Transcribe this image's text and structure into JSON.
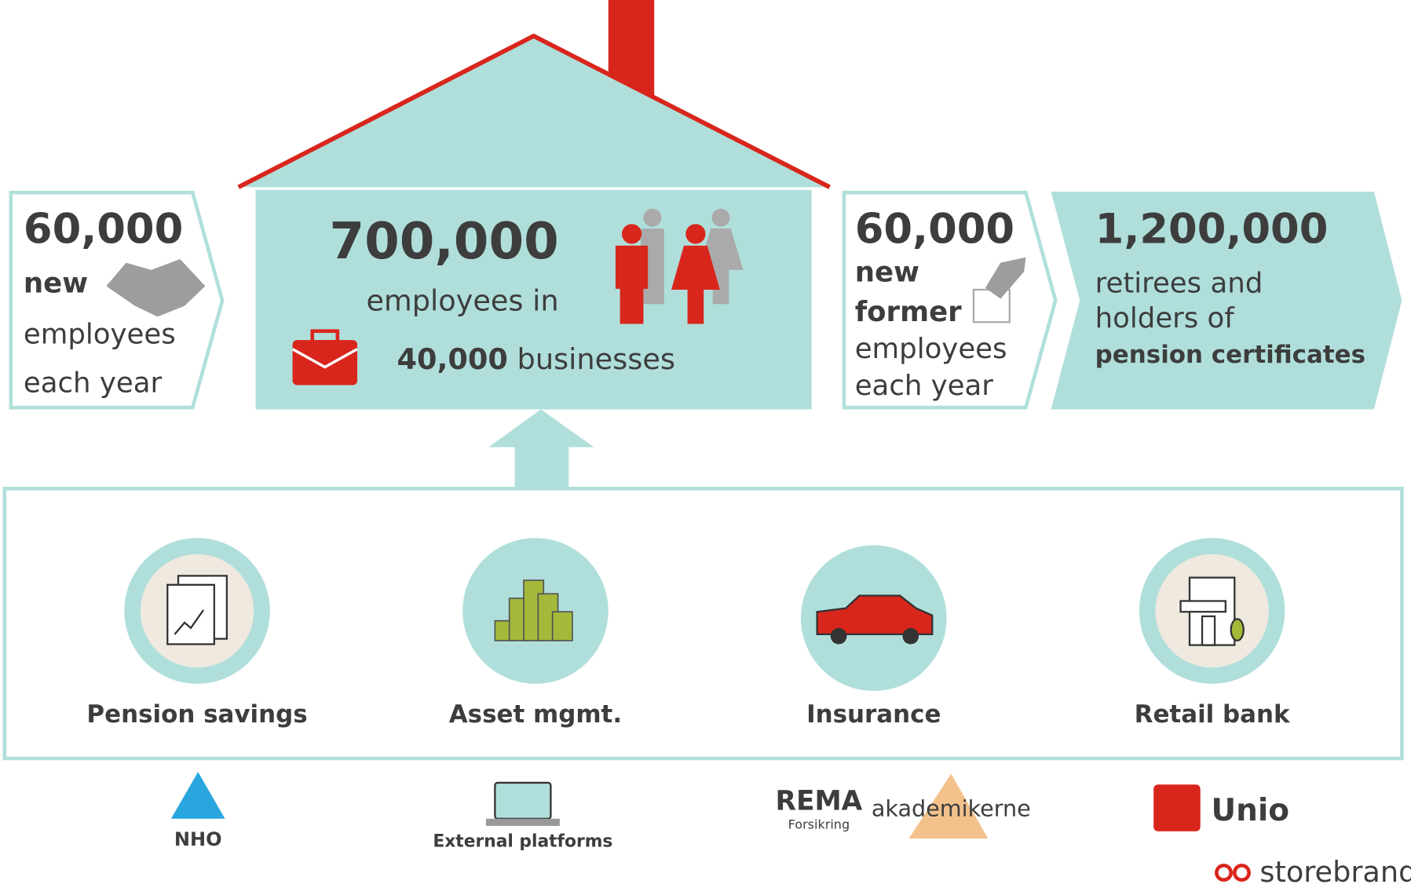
{
  "left": {
    "number": "60,000",
    "lines": [
      "new",
      "employees",
      "each year"
    ]
  },
  "house": {
    "number": "700,000",
    "line": "employees in",
    "businesses_number": "40,000",
    "businesses_label": "businesses"
  },
  "right": {
    "number": "60,000",
    "lines": [
      "new",
      "former",
      "employees",
      "each year"
    ]
  },
  "retirees": {
    "number": "1,200,000",
    "lines": [
      "retirees and",
      "holders of"
    ],
    "bold_line": "pension certificates"
  },
  "services": [
    "Pension savings",
    "Asset mgmt.",
    "Insurance",
    "Retail bank"
  ],
  "partners": {
    "nho": "NHO",
    "platforms": "External platforms",
    "rema": "REMA",
    "rema_sub": "Forsikring",
    "akademikerne": "akademikerne",
    "unio": "Unio",
    "storebrand": "storebrand"
  }
}
